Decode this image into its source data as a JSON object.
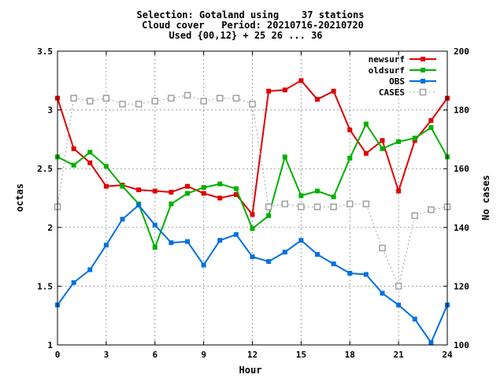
{
  "chart_data": {
    "type": "line",
    "title_lines": [
      "Selection: Gotaland using    37 stations",
      "Cloud cover   Period: 20210716-20210720",
      "Used {00,12} + 25 26 ... 36"
    ],
    "xlabel": "Hour",
    "ylabel": "octas",
    "y2label": "No cases",
    "xlim": [
      0,
      24
    ],
    "ylim": [
      1,
      3.5
    ],
    "y2lim": [
      100,
      200
    ],
    "xticks": [
      "0",
      "3",
      "6",
      "9",
      "12",
      "15",
      "18",
      "21",
      "24"
    ],
    "yticks": [
      "1",
      "1.5",
      "2",
      "2.5",
      "3",
      "3.5"
    ],
    "y2ticks": [
      "100",
      "120",
      "140",
      "160",
      "180",
      "200"
    ],
    "grid": true,
    "legend_position": "top-right",
    "x": [
      0,
      1,
      2,
      3,
      4,
      5,
      6,
      7,
      8,
      9,
      10,
      11,
      12,
      13,
      14,
      15,
      16,
      17,
      18,
      19,
      20,
      21,
      22,
      23,
      24
    ],
    "series": [
      {
        "name": "newsurf",
        "color": "#e00000",
        "marker": "filled-square",
        "axis": "left",
        "values": [
          3.1,
          2.67,
          2.55,
          2.35,
          2.36,
          2.32,
          2.31,
          2.3,
          2.35,
          2.29,
          2.25,
          2.28,
          2.11,
          3.16,
          3.17,
          3.25,
          3.09,
          3.16,
          2.83,
          2.63,
          2.74,
          2.31,
          2.74,
          2.91,
          3.1
        ]
      },
      {
        "name": "oldsurf",
        "color": "#00b000",
        "marker": "filled-square",
        "axis": "left",
        "values": [
          2.6,
          2.53,
          2.64,
          2.52,
          2.35,
          2.2,
          1.83,
          2.2,
          2.29,
          2.34,
          2.37,
          2.33,
          1.99,
          2.1,
          2.6,
          2.27,
          2.31,
          2.26,
          2.59,
          2.88,
          2.67,
          2.73,
          2.76,
          2.85,
          2.6
        ]
      },
      {
        "name": "OBS",
        "color": "#0070e0",
        "marker": "filled-square",
        "axis": "left",
        "values": [
          1.34,
          1.53,
          1.64,
          1.85,
          2.07,
          2.19,
          2.02,
          1.87,
          1.88,
          1.68,
          1.89,
          1.94,
          1.75,
          1.71,
          1.79,
          1.89,
          1.77,
          1.69,
          1.61,
          1.6,
          1.44,
          1.34,
          1.22,
          1.02,
          1.34
        ]
      },
      {
        "name": "CASES",
        "color": "#a0a0a0",
        "marker": "open-square",
        "axis": "right",
        "dashed": true,
        "values": [
          147,
          184,
          183,
          184,
          182,
          182,
          183,
          184,
          185,
          183,
          184,
          184,
          182,
          147,
          148,
          147,
          147,
          147,
          148,
          148,
          133,
          120,
          144,
          146,
          147
        ]
      }
    ]
  }
}
